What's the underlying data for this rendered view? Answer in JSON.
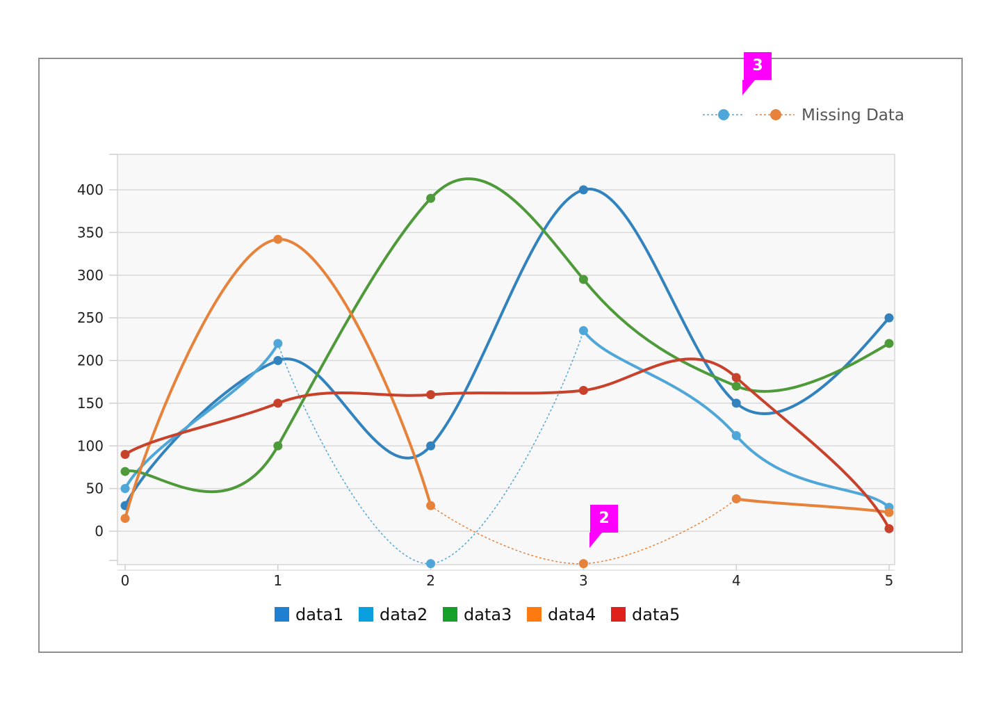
{
  "chart_data": {
    "type": "line",
    "x": [
      0,
      1,
      2,
      3,
      4,
      5
    ],
    "ylim": [
      -40,
      440
    ],
    "yticks": [
      0,
      50,
      100,
      150,
      200,
      250,
      300,
      350,
      400
    ],
    "xticks": [
      0,
      1,
      2,
      3,
      4,
      5
    ],
    "grid": "horizontal",
    "series": [
      {
        "name": "data1",
        "values": [
          30,
          200,
          100,
          400,
          150,
          250
        ],
        "color": "#3182bd",
        "legend_color": "#1f7fd0"
      },
      {
        "name": "data2",
        "values": [
          50,
          220,
          null,
          235,
          112,
          28
        ],
        "color": "#4fa6d9",
        "legend_color": "#0aa0e0"
      },
      {
        "name": "data3",
        "values": [
          70,
          100,
          390,
          295,
          170,
          220
        ],
        "color": "#4e9a3a",
        "legend_color": "#16a02a"
      },
      {
        "name": "data4",
        "values": [
          15,
          342,
          30,
          null,
          38,
          22
        ],
        "color": "#e6823a",
        "legend_color": "#ff7a10"
      },
      {
        "name": "data5",
        "values": [
          90,
          150,
          160,
          165,
          180,
          3
        ],
        "color": "#c8412b",
        "legend_color": "#e0201a"
      }
    ],
    "missing_markers": {
      "data2": {
        "x": 2,
        "y": -38
      },
      "data4": {
        "x": 3,
        "y": -38
      }
    },
    "legend_position": "bottom"
  },
  "missing_legend": {
    "label": "Missing Data",
    "colors": [
      "#4fa6d9",
      "#e6823a"
    ]
  },
  "callouts": {
    "top": "3",
    "bottom": "2",
    "color": "#ff00ff"
  }
}
